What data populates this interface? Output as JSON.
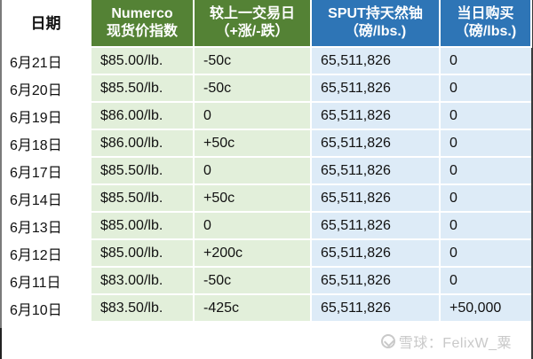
{
  "table": {
    "headers": [
      {
        "line1": "日期",
        "line2": ""
      },
      {
        "line1": "Numerco",
        "line2": "现货价指数"
      },
      {
        "line1": "较上一交易日",
        "line2": "（+涨/-跌）"
      },
      {
        "line1": "SPUT持天然铀",
        "line2": "（磅/lbs.)"
      },
      {
        "line1": "当日购买",
        "line2": "（磅/lbs.)"
      }
    ],
    "rows": [
      {
        "date": "6月21日",
        "price": "$85.00/lb.",
        "change": "-50c",
        "holdings": "65,511,826",
        "purchase": "0"
      },
      {
        "date": "6月20日",
        "price": "$85.50/lb.",
        "change": "-50c",
        "holdings": "65,511,826",
        "purchase": "0"
      },
      {
        "date": "6月19日",
        "price": "$86.00/lb.",
        "change": "0",
        "holdings": "65,511,826",
        "purchase": "0"
      },
      {
        "date": "6月18日",
        "price": "$86.00/lb.",
        "change": "+50c",
        "holdings": "65,511,826",
        "purchase": "0"
      },
      {
        "date": "6月17日",
        "price": "$85.50/lb.",
        "change": "0",
        "holdings": "65,511,826",
        "purchase": "0"
      },
      {
        "date": "6月14日",
        "price": "$85.50/lb.",
        "change": "+50c",
        "holdings": "65,511,826",
        "purchase": "0"
      },
      {
        "date": "6月13日",
        "price": "$85.00/lb.",
        "change": "0",
        "holdings": "65,511,826",
        "purchase": "0"
      },
      {
        "date": "6月12日",
        "price": "$85.00/lb.",
        "change": "+200c",
        "holdings": "65,511,826",
        "purchase": "0"
      },
      {
        "date": "6月11日",
        "price": "$83.00/lb.",
        "change": "-50c",
        "holdings": "65,511,826",
        "purchase": "0"
      },
      {
        "date": "6月10日",
        "price": "$83.50/lb.",
        "change": "-425c",
        "holdings": "65,511,826",
        "purchase": "+50,000"
      }
    ]
  },
  "colors": {
    "green_header": "#548235",
    "green_cell": "#e2efda",
    "blue_header": "#2e75b6",
    "blue_cell": "#ddebf7"
  },
  "watermark": {
    "icon": "xueqiu-logo-icon",
    "text": "雪球：FelixW_粟"
  }
}
